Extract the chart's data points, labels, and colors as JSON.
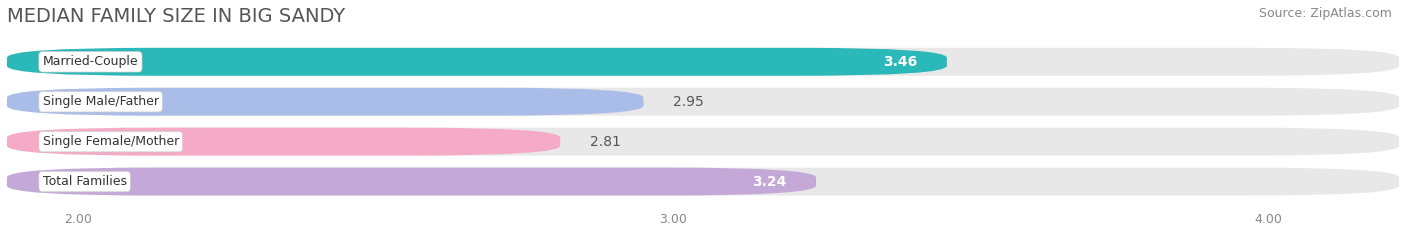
{
  "title": "MEDIAN FAMILY SIZE IN BIG SANDY",
  "source": "Source: ZipAtlas.com",
  "categories": [
    "Married-Couple",
    "Single Male/Father",
    "Single Female/Mother",
    "Total Families"
  ],
  "values": [
    3.46,
    2.95,
    2.81,
    3.24
  ],
  "bar_colors": [
    "#2ab8b8",
    "#aabce8",
    "#f5aac8",
    "#c4a8d8"
  ],
  "label_colors": [
    "#ffffff",
    "#555555",
    "#555555",
    "#ffffff"
  ],
  "xlim_data": [
    2.0,
    4.0
  ],
  "xlim_plot": [
    1.88,
    4.22
  ],
  "xticks": [
    2.0,
    3.0,
    4.0
  ],
  "xtick_labels": [
    "2.00",
    "3.00",
    "4.00"
  ],
  "background_color": "#ffffff",
  "bar_background_color": "#e8e8e8",
  "title_fontsize": 14,
  "source_fontsize": 9,
  "bar_label_fontsize": 10,
  "category_fontsize": 9
}
